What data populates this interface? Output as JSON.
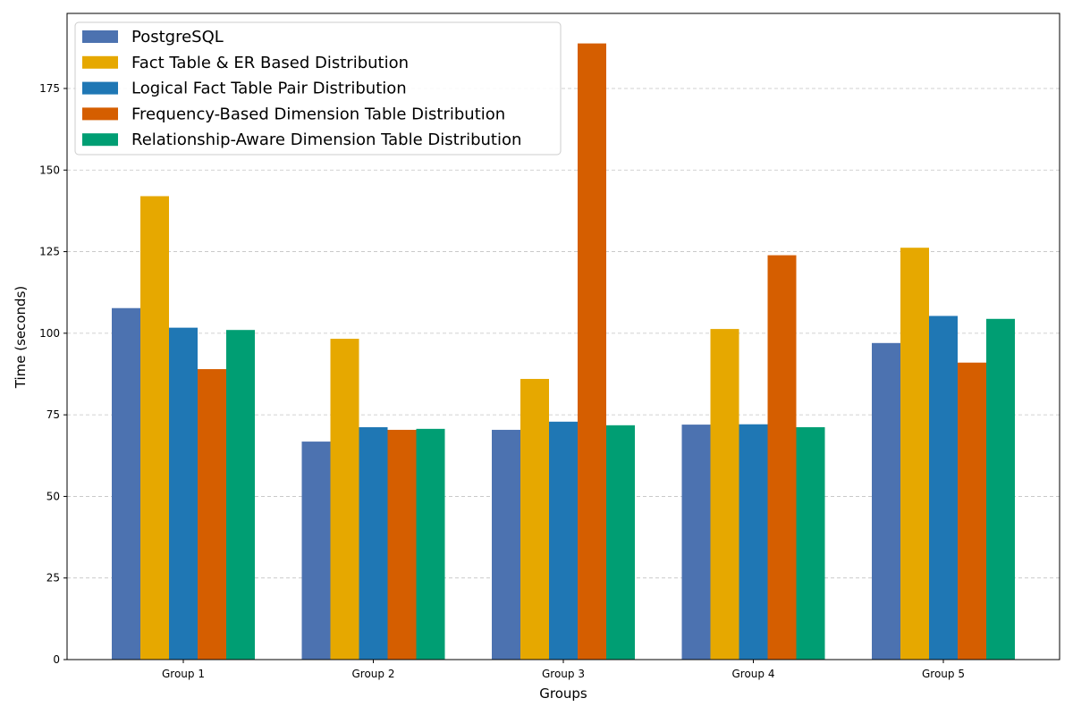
{
  "chart_data": {
    "type": "bar",
    "title": "",
    "xlabel": "Groups",
    "ylabel": "Time (seconds)",
    "ylim": [
      0,
      198
    ],
    "yticks": [
      0,
      25,
      50,
      75,
      100,
      125,
      150,
      175
    ],
    "grid": "horizontal dashed",
    "legend_position": "top-left",
    "categories": [
      "Group 1",
      "Group 2",
      "Group 3",
      "Group 4",
      "Group 5"
    ],
    "series": [
      {
        "name": "PostgreSQL",
        "color": "#4c72b0",
        "values": [
          107.7,
          66.8,
          70.4,
          72.0,
          97.0
        ]
      },
      {
        "name": "Fact Table & ER Based Distribution",
        "color": "#e6a800",
        "values": [
          142.0,
          98.3,
          86.0,
          101.3,
          126.2
        ]
      },
      {
        "name": "Logical Fact Table Pair Distribution",
        "color": "#1f77b4",
        "values": [
          101.7,
          71.2,
          72.9,
          72.1,
          105.3
        ]
      },
      {
        "name": "Frequency-Based Dimension Table Distribution",
        "color": "#d55e00",
        "values": [
          89.0,
          70.4,
          188.8,
          123.9,
          91.0
        ]
      },
      {
        "name": "Relationship-Aware Dimension Table Distribution",
        "color": "#009e73",
        "values": [
          101.0,
          70.7,
          71.8,
          71.2,
          104.4
        ]
      }
    ]
  }
}
